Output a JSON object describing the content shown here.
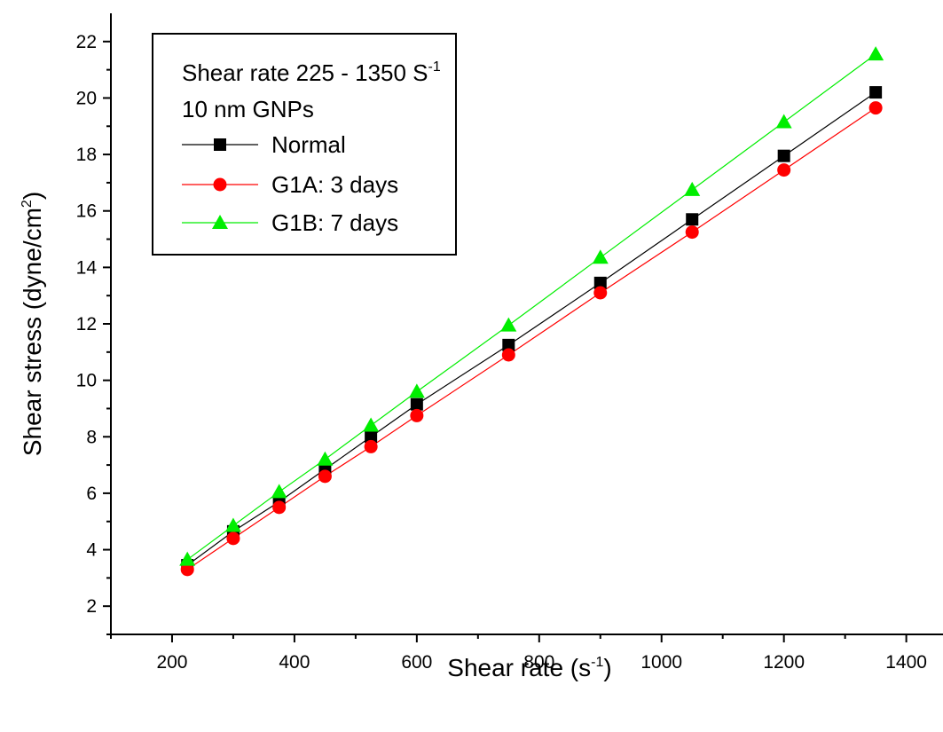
{
  "chart_data": {
    "type": "line",
    "title": "",
    "xlabel_main": "Shear rate (s",
    "xlabel_sup": "-1",
    "xlabel_end": ")",
    "ylabel_main": "Shear stress (dyne/cm",
    "ylabel_sup": "2",
    "ylabel_end": ")",
    "xlim": [
      100,
      1460
    ],
    "ylim": [
      1,
      23
    ],
    "xticks": [
      200,
      400,
      600,
      800,
      1000,
      1200,
      1400
    ],
    "yticks": [
      2,
      4,
      6,
      8,
      10,
      12,
      14,
      16,
      18,
      20,
      22
    ],
    "x": [
      225,
      300,
      375,
      450,
      525,
      600,
      750,
      900,
      1050,
      1200,
      1350
    ],
    "series": [
      {
        "name": "Normal",
        "color": "#000000",
        "marker": "square",
        "values": [
          3.45,
          4.65,
          5.7,
          6.85,
          8.0,
          9.15,
          11.25,
          13.45,
          15.7,
          17.95,
          20.2
        ]
      },
      {
        "name": "G1A: 3 days",
        "color": "#ff0000",
        "marker": "circle",
        "values": [
          3.3,
          4.4,
          5.5,
          6.6,
          7.65,
          8.75,
          10.9,
          13.1,
          15.25,
          17.45,
          19.65
        ]
      },
      {
        "name": "G1B: 7 days",
        "color": "#00ee00",
        "marker": "triangle",
        "values": [
          3.65,
          4.85,
          6.05,
          7.2,
          8.4,
          9.6,
          11.95,
          14.35,
          16.75,
          19.15,
          21.55
        ]
      }
    ],
    "legend": {
      "placement": "top-left",
      "header_line1_main": "Shear rate 225 - 1350 S",
      "header_line1_sup": "-1",
      "header_line2": "10 nm GNPs"
    }
  }
}
